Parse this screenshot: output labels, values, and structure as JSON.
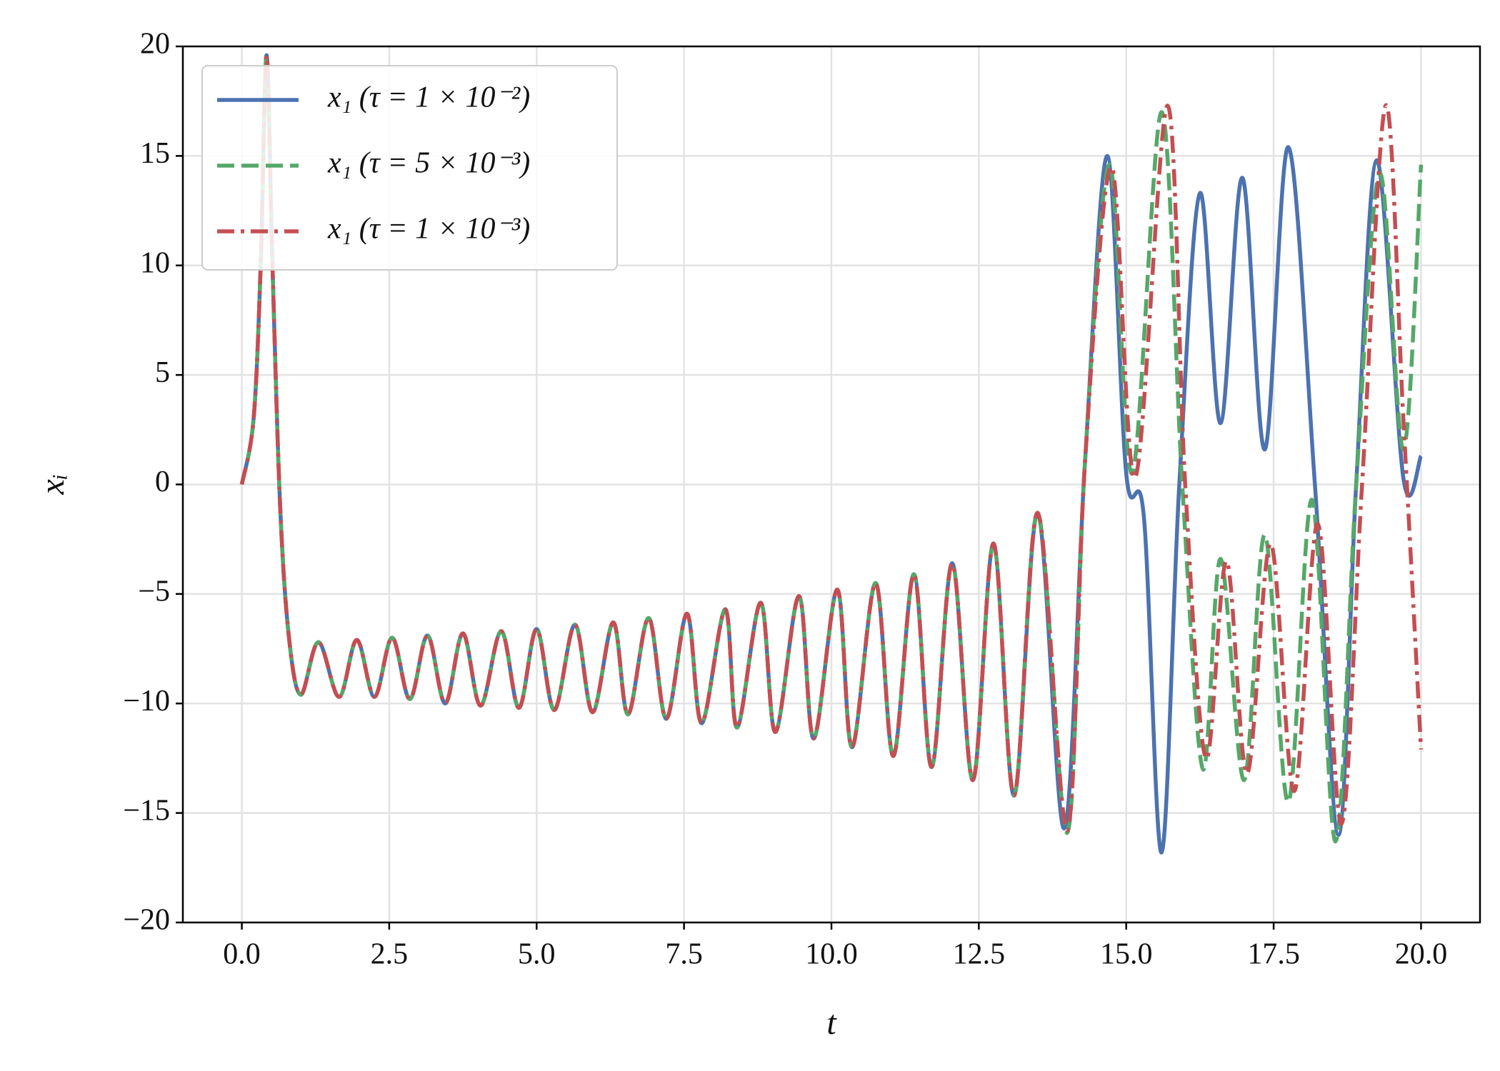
{
  "chart_data": {
    "type": "line",
    "x_label": "t",
    "y_label": "xᵢ",
    "xlim": [
      -1,
      21
    ],
    "ylim": [
      -20,
      20
    ],
    "xticks": [
      {
        "value": 0,
        "label": "0.0"
      },
      2.5,
      {
        "value": 5,
        "label": "5.0"
      },
      7.5,
      {
        "value": 10,
        "label": "10.0"
      },
      12.5,
      {
        "value": 15,
        "label": "15.0"
      },
      17.5,
      {
        "value": 20,
        "label": "20.0"
      }
    ],
    "yticks": [
      {
        "value": -20,
        "label": "−20"
      },
      {
        "value": -15,
        "label": "−15"
      },
      {
        "value": -10,
        "label": "−10"
      },
      {
        "value": -5,
        "label": "−5"
      },
      0,
      5,
      10,
      15,
      20
    ],
    "grid": true,
    "legend": "upper left",
    "series": [
      {
        "name": "x₁ (τ = 1 × 10⁻²)",
        "color": "#4c72b0",
        "linestyle": "solid",
        "x": [
          0,
          0.2,
          0.32,
          0.42,
          0.52,
          0.65,
          0.8,
          1.0,
          1.3,
          1.65,
          1.95,
          2.25,
          2.55,
          2.85,
          3.15,
          3.45,
          3.75,
          4.05,
          4.4,
          4.7,
          5.0,
          5.3,
          5.65,
          5.95,
          6.3,
          6.55,
          6.9,
          7.2,
          7.55,
          7.8,
          8.2,
          8.4,
          8.8,
          9.05,
          9.45,
          9.7,
          10.1,
          10.35,
          10.75,
          11.05,
          11.4,
          11.7,
          12.05,
          12.4,
          12.75,
          13.1,
          13.5,
          13.95,
          14.3,
          14.68,
          15.0,
          15.3,
          15.6,
          15.9,
          16.25,
          16.6,
          16.97,
          17.35,
          17.75,
          18.2,
          18.6,
          18.9,
          19.25,
          19.7,
          20.0
        ],
        "values": [
          0,
          3,
          10,
          19.6,
          10,
          -1,
          -7,
          -9.6,
          -7.2,
          -9.7,
          -7.1,
          -9.7,
          -7.0,
          -9.8,
          -6.9,
          -10.0,
          -6.8,
          -10.1,
          -6.7,
          -10.2,
          -6.6,
          -10.3,
          -6.4,
          -10.4,
          -6.3,
          -10.5,
          -6.1,
          -10.7,
          -5.9,
          -10.9,
          -5.7,
          -11.1,
          -5.4,
          -11.3,
          -5.1,
          -11.6,
          -4.8,
          -12.0,
          -4.5,
          -12.4,
          -4.1,
          -12.9,
          -3.6,
          -13.5,
          -2.7,
          -14.2,
          -1.3,
          -15.7,
          1,
          15,
          0.5,
          -1.5,
          -16.8,
          0,
          13.3,
          2.8,
          14,
          1.6,
          15.4,
          0,
          -16,
          0,
          14.8,
          0.3,
          1.3
        ]
      },
      {
        "name": "x₁ (τ = 5 × 10⁻³)",
        "color": "#55a868",
        "linestyle": "dashed",
        "x": [
          0,
          0.2,
          0.32,
          0.42,
          0.52,
          0.65,
          0.8,
          1.0,
          1.3,
          1.65,
          1.95,
          2.25,
          2.55,
          2.85,
          3.15,
          3.45,
          3.75,
          4.05,
          4.4,
          4.7,
          5.0,
          5.3,
          5.65,
          5.95,
          6.3,
          6.55,
          6.9,
          7.2,
          7.55,
          7.8,
          8.2,
          8.4,
          8.8,
          9.05,
          9.45,
          9.7,
          10.1,
          10.35,
          10.75,
          11.05,
          11.4,
          11.7,
          12.05,
          12.4,
          12.75,
          13.1,
          13.5,
          14.0,
          14.3,
          14.72,
          15.1,
          15.6,
          15.95,
          16.3,
          16.6,
          17.0,
          17.35,
          17.75,
          18.15,
          18.55,
          18.9,
          19.3,
          19.7,
          20.0
        ],
        "values": [
          0,
          3,
          10,
          19.6,
          10,
          -1,
          -7,
          -9.6,
          -7.2,
          -9.7,
          -7.1,
          -9.7,
          -7.0,
          -9.8,
          -6.9,
          -10.0,
          -6.8,
          -10.1,
          -6.7,
          -10.2,
          -6.6,
          -10.3,
          -6.4,
          -10.4,
          -6.3,
          -10.5,
          -6.1,
          -10.7,
          -5.9,
          -10.9,
          -5.7,
          -11.1,
          -5.4,
          -11.3,
          -5.1,
          -11.6,
          -4.8,
          -12.0,
          -4.5,
          -12.4,
          -4.1,
          -12.9,
          -3.6,
          -13.5,
          -2.7,
          -14.2,
          -1.3,
          -15.9,
          1,
          14.6,
          0.5,
          17,
          0,
          -13,
          -3.4,
          -13.5,
          -2.3,
          -14.5,
          -0.7,
          -16.3,
          0,
          14.2,
          1.6,
          14.6
        ]
      },
      {
        "name": "x₁ (τ = 1 × 10⁻³)",
        "color": "#c44e52",
        "linestyle": "dashdot",
        "x": [
          0,
          0.2,
          0.32,
          0.42,
          0.52,
          0.65,
          0.8,
          1.0,
          1.3,
          1.65,
          1.95,
          2.25,
          2.55,
          2.85,
          3.15,
          3.45,
          3.75,
          4.05,
          4.4,
          4.7,
          5.0,
          5.3,
          5.65,
          5.95,
          6.3,
          6.55,
          6.9,
          7.2,
          7.55,
          7.8,
          8.2,
          8.4,
          8.8,
          9.05,
          9.45,
          9.7,
          10.1,
          10.35,
          10.75,
          11.05,
          11.4,
          11.7,
          12.05,
          12.4,
          12.75,
          13.1,
          13.5,
          14.0,
          14.3,
          14.75,
          15.15,
          15.7,
          16.0,
          16.35,
          16.7,
          17.05,
          17.45,
          17.85,
          18.25,
          18.65,
          19.0,
          19.4,
          19.7,
          20.0
        ],
        "values": [
          0,
          3,
          10,
          19.6,
          10,
          -1,
          -7,
          -9.6,
          -7.2,
          -9.7,
          -7.1,
          -9.7,
          -7.0,
          -9.8,
          -6.9,
          -10.0,
          -6.8,
          -10.1,
          -6.7,
          -10.2,
          -6.6,
          -10.3,
          -6.4,
          -10.4,
          -6.3,
          -10.5,
          -6.1,
          -10.7,
          -5.9,
          -10.9,
          -5.7,
          -11.1,
          -5.4,
          -11.3,
          -5.1,
          -11.6,
          -4.8,
          -12.0,
          -4.5,
          -12.4,
          -4.1,
          -12.9,
          -3.6,
          -13.5,
          -2.7,
          -14.2,
          -1.3,
          -15.8,
          1,
          14.5,
          0.3,
          17.3,
          0,
          -12.5,
          -3.5,
          -13.2,
          -2.7,
          -14,
          -1.8,
          -15.5,
          0,
          17.3,
          3,
          -12.1
        ]
      }
    ]
  }
}
